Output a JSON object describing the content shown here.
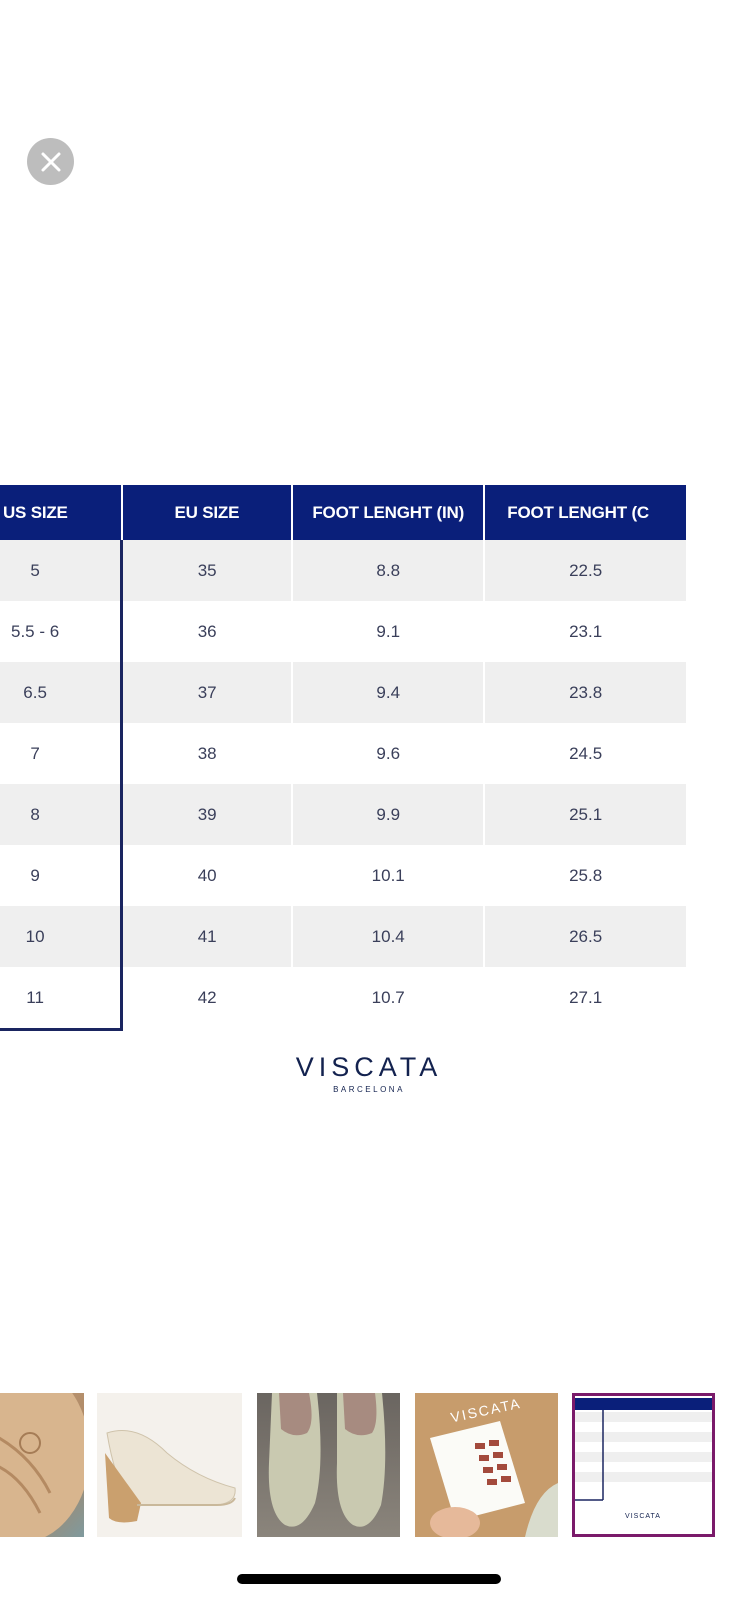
{
  "viewer": {
    "close_icon": "close-icon"
  },
  "size_chart": {
    "headers": [
      "US SIZE",
      "EU SIZE",
      "FOOT LENGHT (IN)",
      "FOOT LENGHT (C"
    ],
    "rows": [
      [
        "5",
        "35",
        "8.8",
        "22.5"
      ],
      [
        "5.5 - 6",
        "36",
        "9.1",
        "23.1"
      ],
      [
        "6.5",
        "37",
        "9.4",
        "23.8"
      ],
      [
        "7",
        "38",
        "9.6",
        "24.5"
      ],
      [
        "8",
        "39",
        "9.9",
        "25.1"
      ],
      [
        "9",
        "40",
        "10.1",
        "25.8"
      ],
      [
        "10",
        "41",
        "10.4",
        "26.5"
      ],
      [
        "11",
        "42",
        "10.7",
        "27.1"
      ]
    ]
  },
  "brand": {
    "name": "VISCATA",
    "city": "BARCELONA"
  },
  "thumbnails": [
    {
      "label": "sole-photo"
    },
    {
      "label": "wedge-shoe-photo"
    },
    {
      "label": "shoes-top-view-photo"
    },
    {
      "label": "box-and-card-photo",
      "text": "VISCATA"
    },
    {
      "label": "size-chart-thumbnail",
      "text": "VISCATA",
      "selected": true
    }
  ],
  "colors": {
    "header_blue": "#0a1f7a",
    "stripe_gray": "#efefef",
    "selected_border": "#7a1a6a"
  }
}
